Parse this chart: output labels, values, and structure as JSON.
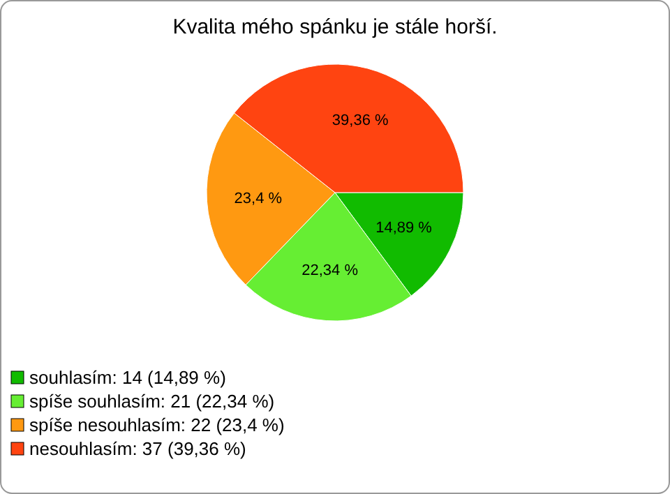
{
  "chart_data": {
    "type": "pie",
    "title": "Kvalita mého spánku je stále horší.",
    "categories": [
      "souhlasím: 14 (14,89 %)",
      "spíše souhlasím: 21 (22,34 %)",
      "spíše nesouhlasím: 22 (23,4 %)",
      "nesouhlasím: 37 (39,36 %)"
    ],
    "values": [
      14.89,
      22.34,
      23.4,
      39.36
    ],
    "value_labels": [
      "14,89 %",
      "22,34 %",
      "23,4 %",
      "39,36 %"
    ],
    "colors": [
      "#11bb00",
      "#66ee33",
      "#ff9911",
      "#ff4411"
    ],
    "legend": "bottom left"
  }
}
